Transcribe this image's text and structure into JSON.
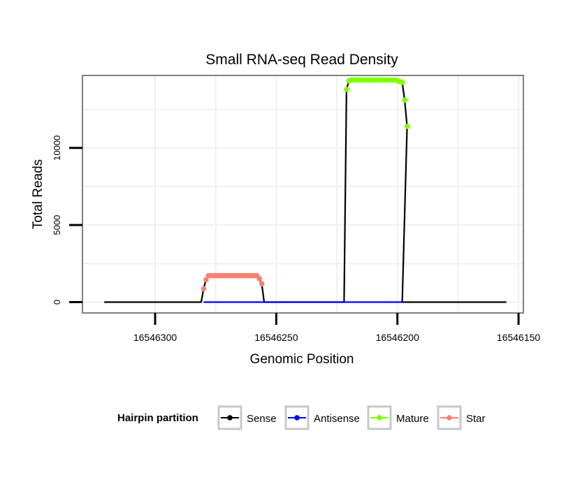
{
  "chart_data": {
    "type": "line",
    "title": "Small RNA-seq Read Density",
    "xlabel": "Genomic Position",
    "ylabel": "Total Reads",
    "x_reversed": true,
    "xlim": [
      16546330,
      16546148
    ],
    "ylim": [
      -700,
      14700
    ],
    "x_ticks": [
      16546300,
      16546250,
      16546200,
      16546150
    ],
    "x_tick_labels": [
      "16546300",
      "16546250",
      "16546200",
      "16546150"
    ],
    "y_ticks": [
      0,
      5000,
      10000
    ],
    "y_tick_labels": [
      "0",
      "5000",
      "10000"
    ],
    "series": [
      {
        "name": "Sense",
        "color": "#000000",
        "points": [
          [
            16546321,
            0
          ],
          [
            16546281,
            0
          ],
          [
            16546280,
            870
          ],
          [
            16546279,
            1450
          ],
          [
            16546278,
            1720
          ],
          [
            16546258,
            1720
          ],
          [
            16546257,
            1520
          ],
          [
            16546256,
            1200
          ],
          [
            16546255,
            0
          ],
          [
            16546222,
            0
          ],
          [
            16546221,
            13800
          ],
          [
            16546220,
            14350
          ],
          [
            16546199,
            14350
          ],
          [
            16546198,
            14250
          ],
          [
            16546197,
            13100
          ],
          [
            16546196,
            11400
          ],
          [
            16546198,
            0
          ],
          [
            16546155,
            0
          ]
        ]
      },
      {
        "name": "Antisense",
        "color": "#0000ff",
        "points": [
          [
            16546280,
            0
          ],
          [
            16546255,
            0
          ],
          [
            16546221,
            0
          ],
          [
            16546198,
            0
          ]
        ]
      },
      {
        "name": "Mature",
        "color": "#7fff00",
        "points": [
          [
            16546221,
            13800
          ],
          [
            16546220,
            14350
          ],
          [
            16546219,
            14400
          ],
          [
            16546218,
            14400
          ],
          [
            16546217,
            14400
          ],
          [
            16546216,
            14400
          ],
          [
            16546215,
            14400
          ],
          [
            16546214,
            14400
          ],
          [
            16546213,
            14400
          ],
          [
            16546212,
            14400
          ],
          [
            16546211,
            14400
          ],
          [
            16546210,
            14400
          ],
          [
            16546209,
            14400
          ],
          [
            16546208,
            14400
          ],
          [
            16546207,
            14400
          ],
          [
            16546206,
            14400
          ],
          [
            16546205,
            14400
          ],
          [
            16546204,
            14400
          ],
          [
            16546203,
            14400
          ],
          [
            16546202,
            14400
          ],
          [
            16546201,
            14400
          ],
          [
            16546200,
            14350
          ],
          [
            16546199,
            14300
          ],
          [
            16546198,
            14250
          ],
          [
            16546197,
            13100
          ],
          [
            16546196,
            11400
          ]
        ]
      },
      {
        "name": "Star",
        "color": "#fa8072",
        "points": [
          [
            16546280,
            870
          ],
          [
            16546279,
            1450
          ],
          [
            16546278,
            1720
          ],
          [
            16546277,
            1720
          ],
          [
            16546276,
            1720
          ],
          [
            16546275,
            1720
          ],
          [
            16546274,
            1720
          ],
          [
            16546273,
            1720
          ],
          [
            16546272,
            1720
          ],
          [
            16546271,
            1720
          ],
          [
            16546270,
            1720
          ],
          [
            16546269,
            1720
          ],
          [
            16546268,
            1720
          ],
          [
            16546267,
            1720
          ],
          [
            16546266,
            1720
          ],
          [
            16546265,
            1720
          ],
          [
            16546264,
            1720
          ],
          [
            16546263,
            1720
          ],
          [
            16546262,
            1720
          ],
          [
            16546261,
            1720
          ],
          [
            16546260,
            1720
          ],
          [
            16546259,
            1720
          ],
          [
            16546258,
            1720
          ],
          [
            16546257,
            1520
          ],
          [
            16546256,
            1200
          ]
        ]
      }
    ],
    "legend": {
      "title": "Hairpin partition",
      "placement": "bottom",
      "entries": [
        "Sense",
        "Antisense",
        "Mature",
        "Star"
      ]
    }
  }
}
